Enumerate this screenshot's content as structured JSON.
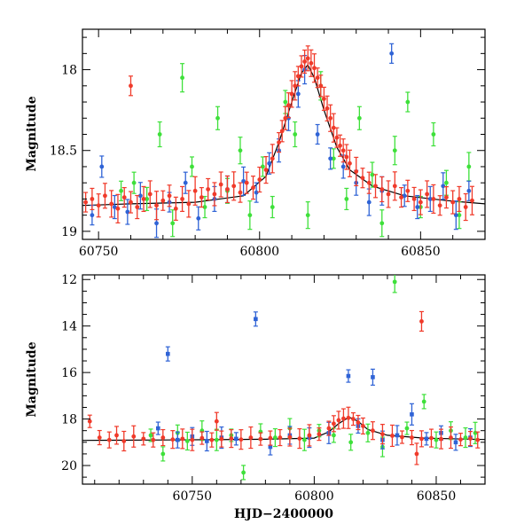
{
  "chart_data": [
    {
      "type": "scatter",
      "panel": "top",
      "ylabel": "Magnitude",
      "xlabel": "",
      "xlim": [
        60745,
        60870
      ],
      "ylim": [
        19.05,
        17.75
      ],
      "y_inverted": true,
      "xticks": [
        60750,
        60800,
        60850
      ],
      "xtick_labels": [
        "60750",
        "60800",
        "60850"
      ],
      "yticks": [
        18,
        18.5,
        19
      ],
      "ytick_labels": [
        "18",
        "18.5",
        "19"
      ],
      "grid": false,
      "legend": "none",
      "model_curve": {
        "color": "#000000",
        "x": [
          60745,
          60760,
          60780,
          60795,
          60802,
          60806,
          60810,
          60813,
          60815,
          60817,
          60820,
          60824,
          60828,
          60835,
          60845,
          60858,
          60870
        ],
        "y": [
          18.84,
          18.83,
          18.82,
          18.78,
          18.66,
          18.45,
          18.2,
          18.02,
          17.97,
          18.05,
          18.25,
          18.48,
          18.62,
          18.72,
          18.78,
          18.81,
          18.83
        ]
      },
      "series": [
        {
          "color": "#f03a2a",
          "x": [
            60746,
            60748,
            60750,
            60752,
            60754,
            60756,
            60758,
            60760,
            60762,
            60764,
            60766,
            60768,
            60770,
            60772,
            60774,
            60776,
            60778,
            60780,
            60782,
            60784,
            60786,
            60788,
            60790,
            60792,
            60794,
            60796,
            60798,
            60800,
            60802,
            60804,
            60806,
            60807,
            60808,
            60809,
            60810,
            60811,
            60812,
            60813,
            60814,
            60815,
            60816,
            60817,
            60818,
            60819,
            60820,
            60821,
            60822,
            60823,
            60824,
            60825,
            60826,
            60827,
            60828,
            60830,
            60832,
            60834,
            60836,
            60838,
            60840,
            60842,
            60844,
            60846,
            60848,
            60850,
            60852,
            60854,
            60856,
            60858,
            60860,
            60862,
            60864,
            60866,
            60760
          ],
          "y": [
            18.82,
            18.8,
            18.84,
            18.78,
            18.83,
            18.86,
            18.79,
            18.82,
            18.85,
            18.8,
            18.77,
            18.84,
            18.81,
            18.78,
            18.86,
            18.8,
            18.83,
            18.75,
            18.79,
            18.74,
            18.77,
            18.71,
            18.74,
            18.72,
            18.76,
            18.7,
            18.73,
            18.68,
            18.62,
            18.55,
            18.45,
            18.38,
            18.3,
            18.22,
            18.15,
            18.1,
            18.04,
            17.98,
            17.95,
            17.93,
            17.96,
            17.99,
            18.05,
            18.1,
            18.18,
            18.24,
            18.3,
            18.36,
            18.42,
            18.47,
            18.5,
            18.54,
            18.58,
            18.63,
            18.67,
            18.7,
            18.72,
            18.74,
            18.77,
            18.72,
            18.79,
            18.75,
            18.8,
            18.82,
            18.77,
            18.8,
            18.84,
            18.79,
            18.82,
            18.8,
            18.85,
            18.81,
            18.1
          ]
        },
        {
          "color": "#2f63d6",
          "x": [
            60748,
            60751,
            60755,
            60759,
            60763,
            60768,
            60772,
            60777,
            60781,
            60786,
            60790,
            60795,
            60799,
            60803,
            60806,
            60809,
            60812,
            60814,
            60818,
            60822,
            60826,
            60830,
            60834,
            60838,
            60841,
            60845,
            60849,
            60853,
            60857,
            60861,
            60865
          ],
          "y": [
            18.9,
            18.6,
            18.85,
            18.88,
            18.78,
            18.95,
            18.82,
            18.7,
            18.92,
            18.8,
            18.74,
            18.69,
            18.76,
            18.58,
            18.5,
            18.3,
            18.15,
            18.0,
            18.4,
            18.55,
            18.6,
            18.7,
            18.82,
            18.75,
            17.9,
            18.78,
            18.85,
            18.8,
            18.72,
            18.9,
            18.75
          ]
        },
        {
          "color": "#3ee03a",
          "x": [
            60757,
            60761,
            60765,
            60769,
            60773,
            60776,
            60779,
            60783,
            60787,
            60790,
            60794,
            60797,
            60801,
            60804,
            60808,
            60811,
            60815,
            60819,
            60823,
            60827,
            60831,
            60835,
            60838,
            60842,
            60846,
            60850,
            60854,
            60858,
            60862,
            60865
          ],
          "y": [
            18.75,
            18.7,
            18.8,
            18.4,
            18.95,
            18.05,
            18.6,
            18.85,
            18.3,
            18.75,
            18.5,
            18.9,
            18.6,
            18.85,
            18.2,
            18.4,
            18.9,
            18.1,
            18.55,
            18.8,
            18.3,
            18.65,
            18.95,
            18.5,
            18.2,
            18.85,
            18.4,
            18.7,
            18.9,
            18.6
          ]
        }
      ]
    },
    {
      "type": "scatter",
      "panel": "bottom",
      "ylabel": "Magnitude",
      "xlabel": "HJD−2400000",
      "xlim": [
        60705,
        60870
      ],
      "ylim": [
        20.8,
        11.8
      ],
      "y_inverted": true,
      "xticks": [
        60750,
        60800,
        60850
      ],
      "xtick_labels": [
        "60750",
        "60800",
        "60850"
      ],
      "yticks": [
        12,
        14,
        16,
        18,
        20
      ],
      "ytick_labels": [
        "12",
        "14",
        "16",
        "18",
        "20"
      ],
      "grid": false,
      "legend": "none",
      "model_curve": {
        "color": "#000000",
        "x": [
          60705,
          60740,
          60780,
          60800,
          60806,
          60810,
          60813,
          60815,
          60818,
          60822,
          60830,
          60845,
          60870
        ],
        "y": [
          18.92,
          18.9,
          18.87,
          18.82,
          18.55,
          18.2,
          18.0,
          17.95,
          18.1,
          18.45,
          18.7,
          18.82,
          18.88
        ]
      },
      "series": [
        {
          "color": "#f03a2a",
          "x": [
            60708,
            60712,
            60716,
            60719,
            60722,
            60726,
            60730,
            60734,
            60738,
            60742,
            60746,
            60750,
            60754,
            60758,
            60762,
            60766,
            60770,
            60774,
            60778,
            60782,
            60786,
            60790,
            60794,
            60798,
            60802,
            60806,
            60808,
            60810,
            60812,
            60814,
            60816,
            60818,
            60820,
            60824,
            60828,
            60832,
            60836,
            60840,
            60844,
            60848,
            60852,
            60856,
            60860,
            60864,
            60867,
            60760,
            60844,
            60842
          ],
          "y": [
            18.1,
            18.8,
            18.9,
            18.7,
            18.95,
            18.75,
            18.85,
            18.9,
            18.8,
            18.88,
            18.85,
            18.9,
            18.82,
            18.9,
            18.86,
            18.84,
            18.88,
            18.8,
            18.86,
            18.82,
            18.8,
            18.78,
            18.84,
            18.7,
            18.65,
            18.4,
            18.2,
            18.05,
            17.98,
            17.95,
            18.0,
            18.15,
            18.3,
            18.5,
            18.65,
            18.72,
            18.78,
            18.8,
            18.85,
            18.82,
            18.86,
            18.8,
            18.88,
            18.84,
            18.9,
            18.1,
            13.8,
            19.5
          ]
        },
        {
          "color": "#2f63d6",
          "x": [
            60736,
            60740,
            60744,
            60750,
            60756,
            60762,
            60768,
            60776,
            60782,
            60790,
            60798,
            60806,
            60814,
            60818,
            60824,
            60828,
            60834,
            60840,
            60846,
            60852,
            60858,
            60864
          ],
          "y": [
            18.4,
            15.2,
            18.9,
            18.75,
            18.95,
            18.8,
            18.85,
            13.7,
            19.2,
            18.7,
            18.8,
            18.6,
            16.15,
            18.3,
            16.2,
            18.9,
            18.7,
            17.8,
            18.85,
            18.6,
            19.0,
            18.8
          ],
          "marker": "square"
        },
        {
          "color": "#3ee03a",
          "x": [
            60733,
            60738,
            60744,
            60748,
            60754,
            60760,
            60766,
            60771,
            60778,
            60784,
            60790,
            60796,
            60802,
            60808,
            60815,
            60822,
            60828,
            60833,
            60838,
            60845,
            60850,
            60856,
            60862,
            60866
          ],
          "y": [
            18.7,
            19.5,
            18.6,
            18.95,
            18.5,
            18.9,
            18.7,
            20.3,
            18.55,
            18.8,
            18.4,
            18.9,
            18.5,
            18.7,
            19.0,
            18.6,
            19.2,
            12.1,
            18.4,
            17.25,
            18.9,
            18.5,
            18.8,
            18.6
          ]
        }
      ]
    }
  ]
}
